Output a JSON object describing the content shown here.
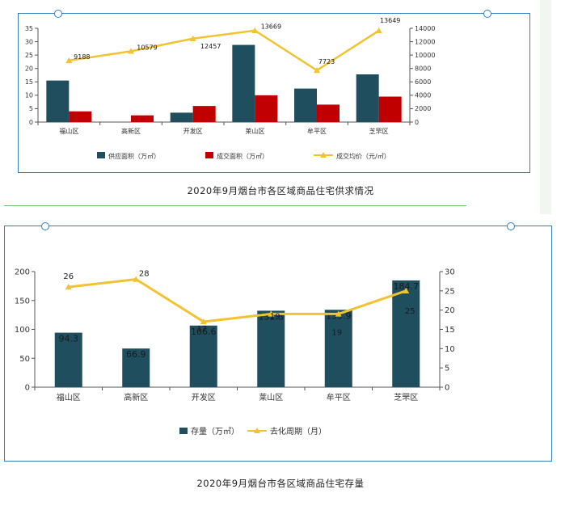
{
  "charts": [
    {
      "caption": "2020年9月烟台市各区域商品住宅供求情况",
      "chart_data": {
        "type": "bar",
        "categories": [
          "福山区",
          "高新区",
          "开发区",
          "莱山区",
          "牟平区",
          "芝罘区"
        ],
        "series": [
          {
            "name": "供应面积（万㎡）",
            "type": "bar",
            "axis": "left",
            "color": "#1f4e5f",
            "values": [
              15.5,
              0,
              3.5,
              28.8,
              12.5,
              17.8
            ]
          },
          {
            "name": "成交面积（万㎡）",
            "type": "bar",
            "axis": "left",
            "color": "#c00000",
            "values": [
              4.0,
              2.5,
              6.0,
              10.0,
              6.5,
              9.5
            ]
          },
          {
            "name": "成交均价（元/㎡）",
            "type": "line",
            "axis": "right",
            "color": "#f2c230",
            "values": [
              9188,
              10579,
              12457,
              13669,
              7723,
              13649
            ],
            "labels": [
              "9188",
              "10579",
              "12457",
              "13669",
              "7723",
              "13649"
            ]
          }
        ],
        "ylim_left": [
          0,
          35
        ],
        "yticks_left": [
          "0",
          "5",
          "10",
          "15",
          "20",
          "25",
          "30",
          "35"
        ],
        "ylim_right": [
          0,
          14000
        ],
        "yticks_right": [
          "0",
          "2000",
          "4000",
          "6000",
          "8000",
          "10000",
          "12000",
          "14000"
        ],
        "legend_position": "bottom",
        "grid": false
      }
    },
    {
      "caption": "2020年9月烟台市各区域商品住宅存量",
      "chart_data": {
        "type": "bar",
        "categories": [
          "福山区",
          "高新区",
          "开发区",
          "莱山区",
          "牟平区",
          "芝罘区"
        ],
        "series": [
          {
            "name": "存量（万㎡）",
            "type": "bar",
            "axis": "left",
            "color": "#1f4e5f",
            "values": [
              94.3,
              66.9,
              106.6,
              132.3,
              133.9,
              184.7
            ],
            "labels": [
              "94.3",
              "66.9",
              "106.6",
              "132.3",
              "133.9",
              "184.7"
            ]
          },
          {
            "name": "去化周期（月）",
            "type": "line",
            "axis": "right",
            "color": "#f2c230",
            "values": [
              26,
              28,
              17,
              19,
              19,
              25
            ],
            "labels": [
              "26",
              "28",
              "17",
              "19",
              "19",
              "25"
            ]
          }
        ],
        "ylim_left": [
          0,
          200
        ],
        "yticks_left": [
          "0",
          "50",
          "100",
          "150",
          "200"
        ],
        "ylim_right": [
          0,
          30
        ],
        "yticks_right": [
          "0",
          "5",
          "10",
          "15",
          "20",
          "25",
          "30"
        ],
        "legend_position": "bottom",
        "grid": false
      }
    }
  ]
}
